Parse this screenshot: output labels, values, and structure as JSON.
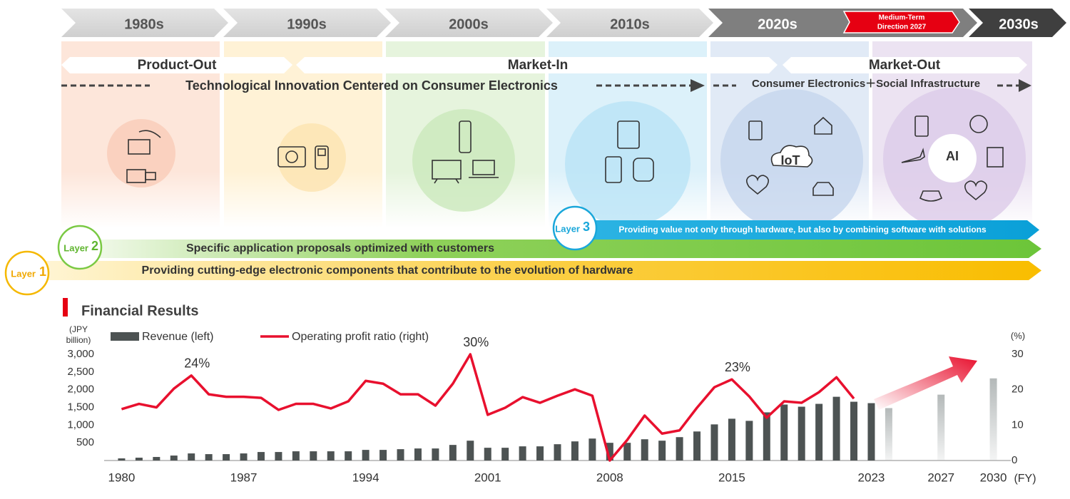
{
  "timeline": {
    "decades": [
      "1980s",
      "1990s",
      "2000s",
      "2010s",
      "2020s",
      "2030s"
    ],
    "medium_term": [
      "Medium-Term",
      "Direction 2027"
    ],
    "phases": [
      "Product-Out",
      "Market-In",
      "Market-Out"
    ],
    "themes": [
      "Technological Innovation Centered on Consumer Electronics",
      "Consumer Electronics＋Social Infrastructure"
    ],
    "icon_labels": [
      "IoT",
      "AI"
    ]
  },
  "layers": [
    {
      "label": "Layer",
      "number": "1",
      "text": "Providing cutting-edge electronic components that contribute to the evolution of hardware"
    },
    {
      "label": "Layer",
      "number": "2",
      "text": "Specific application proposals optimized with customers"
    },
    {
      "label": "Layer",
      "number": "3",
      "text": "Providing value not only through hardware, but also by combining software with solutions"
    }
  ],
  "chart_data": {
    "type": "combo",
    "title": "Financial Results",
    "ylabel": [
      "(JPY",
      "billion)"
    ],
    "y2label": "(%)",
    "xlabel": "(FY)",
    "x": [
      1980,
      1981,
      1982,
      1983,
      1984,
      1985,
      1986,
      1987,
      1988,
      1989,
      1990,
      1991,
      1992,
      1993,
      1994,
      1995,
      1996,
      1997,
      1998,
      1999,
      2000,
      2001,
      2002,
      2003,
      2004,
      2005,
      2006,
      2007,
      2008,
      2009,
      2010,
      2011,
      2012,
      2013,
      2014,
      2015,
      2016,
      2017,
      2018,
      2019,
      2020,
      2021,
      2022,
      2023,
      2024,
      2027,
      2030
    ],
    "projection_start": 2024,
    "series": [
      {
        "name": "Revenue (left)",
        "type": "bar",
        "color": "#4d5353",
        "projection_color": "#b4b9b9",
        "values": [
          60,
          80,
          100,
          140,
          200,
          180,
          180,
          200,
          240,
          240,
          260,
          260,
          260,
          260,
          300,
          300,
          320,
          340,
          340,
          440,
          560,
          360,
          360,
          400,
          400,
          460,
          540,
          620,
          500,
          500,
          600,
          560,
          660,
          820,
          1020,
          1180,
          1120,
          1360,
          1580,
          1520,
          1600,
          1800,
          1660,
          1620,
          1480,
          1860,
          2320
        ]
      },
      {
        "name": "Operating profit ratio (right)",
        "type": "line",
        "axis": "y2",
        "color": "#e8102e",
        "values": [
          14.5,
          16,
          15,
          20.3,
          24,
          18.7,
          18,
          18,
          17.7,
          14.3,
          16,
          16,
          14.7,
          16.7,
          22.5,
          21.7,
          18.7,
          18.7,
          15.5,
          21.7,
          30,
          12.9,
          14.9,
          17.9,
          16.3,
          18.3,
          20.1,
          18.3,
          0,
          5.8,
          12.7,
          7.6,
          8.5,
          14.9,
          20.7,
          22.9,
          18.1,
          12.1,
          16.7,
          16.3,
          19.3,
          23.5,
          17.5,
          null,
          null,
          null,
          null
        ],
        "value_labels": [
          null,
          null,
          null,
          null,
          "24%",
          null,
          null,
          null,
          null,
          null,
          null,
          null,
          null,
          null,
          null,
          null,
          null,
          null,
          null,
          null,
          "30%",
          null,
          null,
          null,
          null,
          null,
          null,
          null,
          null,
          null,
          null,
          null,
          null,
          null,
          null,
          "23%",
          null,
          null,
          null,
          null,
          null,
          null,
          null,
          null,
          null,
          null,
          null
        ]
      }
    ],
    "xlim": [
      1979,
      2031
    ],
    "xticks": [
      1980,
      1987,
      1994,
      2001,
      2008,
      2015,
      2023,
      2027,
      2030
    ],
    "ylim": [
      0,
      3000
    ],
    "yticks": [
      500,
      {
        "value": 1000,
        "label": "1,000"
      },
      {
        "value": 1500,
        "label": "1,500"
      },
      {
        "value": 2000,
        "label": "2,000"
      },
      {
        "value": 2500,
        "label": "2,500"
      },
      {
        "value": 3000,
        "label": "3,000"
      }
    ],
    "y2lim": [
      0,
      30
    ],
    "y2ticks": [
      0,
      10,
      20,
      30
    ],
    "grid": false
  }
}
